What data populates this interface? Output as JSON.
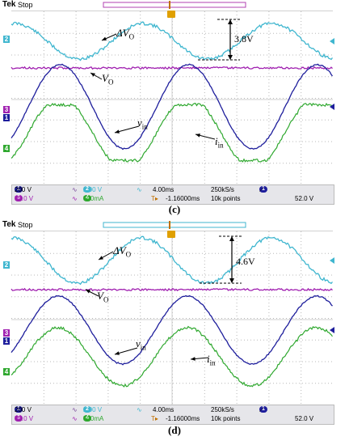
{
  "panels": [
    {
      "id": "c",
      "caption": "(c)",
      "brand": "Tek",
      "run_state": "Stop",
      "amplitude_label": "3.8V",
      "labels": {
        "delta_vo": "ΔV",
        "delta_vo_sub": "O",
        "vo": "V",
        "vo_sub": "O",
        "vin": "v",
        "vin_sub": "in",
        "iin": "i",
        "iin_sub": "in"
      },
      "status": {
        "ch1_num": "1",
        "ch1_scale": "200 V",
        "ch2_num": "2",
        "ch2_scale": "2.00 V",
        "ch3_num": "3",
        "ch3_scale": "50.0 V",
        "ch4_num": "4",
        "ch4_scale": "500mA",
        "timebase": "4.00ms",
        "sample_rate": "250kS/s",
        "trigger_pos": "-1.16000ms",
        "record_length": "10k points",
        "trigger_ch": "1",
        "trigger_level": "52.0 V"
      },
      "marker_labels": [
        "2",
        "3",
        "1",
        "4"
      ]
    },
    {
      "id": "d",
      "caption": "(d)",
      "brand": "Tek",
      "run_state": "Stop",
      "amplitude_label": "4.6V",
      "labels": {
        "delta_vo": "ΔV",
        "delta_vo_sub": "O",
        "vo": "V",
        "vo_sub": "O",
        "vin": "v",
        "vin_sub": "in",
        "iin": "i",
        "iin_sub": "in"
      },
      "status": {
        "ch1_num": "1",
        "ch1_scale": "200 V",
        "ch2_num": "2",
        "ch2_scale": "2.00 V",
        "ch3_num": "3",
        "ch3_scale": "50.0 V",
        "ch4_num": "4",
        "ch4_scale": "500mA",
        "timebase": "4.00ms",
        "sample_rate": "250kS/s",
        "trigger_pos": "-1.16000ms",
        "record_length": "10k points",
        "trigger_ch": "1",
        "trigger_level": "52.0 V"
      },
      "marker_labels": [
        "2",
        "3",
        "1",
        "4"
      ]
    }
  ],
  "colors": {
    "ch1": "#1e1e9c",
    "ch2": "#3fb6cf",
    "ch3": "#a020b0",
    "ch4": "#2fa82f",
    "grid": "#b8b8b8"
  },
  "icons": [
    "trigger-t-icon",
    "arrow-icon",
    "sine-icon"
  ]
}
